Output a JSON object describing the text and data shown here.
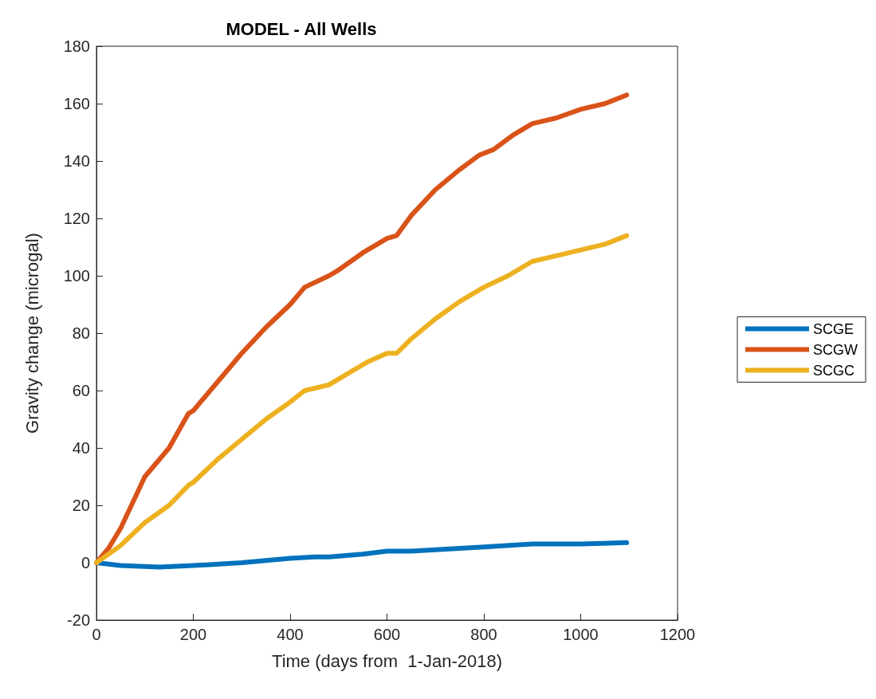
{
  "chart_data": {
    "type": "line",
    "title": "MODEL - All Wells",
    "xlabel": "Time (days from  1-Jan-2018)",
    "ylabel": "Gravity change (microgal)",
    "xlim": [
      0,
      1200
    ],
    "xticks": [
      0,
      200,
      400,
      600,
      800,
      1000,
      1200
    ],
    "ylim": [
      -20,
      180
    ],
    "yticks": [
      -20,
      0,
      20,
      40,
      60,
      80,
      100,
      120,
      140,
      160,
      180
    ],
    "grid": false,
    "legend": "right",
    "marker": "none",
    "line_style": "solid",
    "series": [
      {
        "name": "SCGE",
        "color": "#0072bd",
        "x": [
          0,
          50,
          130,
          200,
          300,
          400,
          450,
          480,
          550,
          600,
          650,
          700,
          800,
          900,
          950,
          1000,
          1095
        ],
        "values": [
          0,
          -1,
          -1.5,
          -1,
          0,
          1.5,
          2,
          2,
          3,
          4,
          4,
          4.5,
          5.5,
          6.5,
          6.5,
          6.5,
          7
        ]
      },
      {
        "name": "SCGW",
        "color": "#d95319",
        "x": [
          0,
          25,
          50,
          100,
          150,
          190,
          200,
          250,
          300,
          350,
          400,
          430,
          480,
          500,
          550,
          580,
          600,
          620,
          650,
          700,
          750,
          790,
          820,
          860,
          900,
          950,
          1000,
          1050,
          1095
        ],
        "values": [
          0,
          5,
          12,
          30,
          40,
          52,
          53,
          63,
          73,
          82,
          90,
          96,
          100,
          102,
          108,
          111,
          113,
          114,
          121,
          130,
          137,
          142,
          144,
          149,
          153,
          155,
          158,
          160,
          163
        ]
      },
      {
        "name": "SCGC",
        "color": "#edb120",
        "x": [
          0,
          50,
          100,
          150,
          190,
          200,
          250,
          300,
          350,
          400,
          430,
          480,
          520,
          560,
          600,
          620,
          650,
          700,
          750,
          800,
          850,
          900,
          950,
          1000,
          1050,
          1095
        ],
        "values": [
          0,
          6,
          14,
          20,
          27,
          28,
          36,
          43,
          50,
          56,
          60,
          62,
          66,
          70,
          73,
          73,
          78,
          85,
          91,
          96,
          100,
          105,
          107,
          109,
          111,
          114
        ]
      }
    ]
  }
}
